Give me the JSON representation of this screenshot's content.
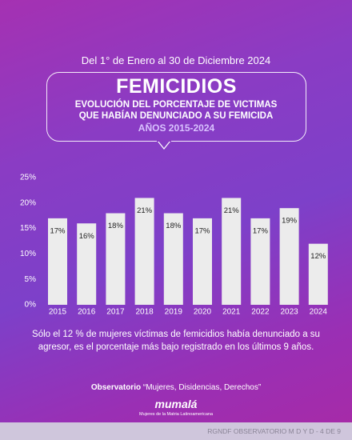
{
  "header": {
    "date_range": "Del 1° de Enero al 30 de Diciembre 2024"
  },
  "chart_data": {
    "type": "bar",
    "title": "FEMICIDIOS",
    "subtitle": "EVOLUCIÓN DEL PORCENTAJE DE VICTIMAS QUE HABÍAN DENUNCIADO A SU FEMICIDA",
    "period": "AÑOS 2015-2024",
    "categories": [
      "2015",
      "2016",
      "2017",
      "2018",
      "2019",
      "2020",
      "2021",
      "2022",
      "2023",
      "2024"
    ],
    "values": [
      17,
      16,
      18,
      21,
      18,
      17,
      21,
      17,
      19,
      12
    ],
    "value_labels": [
      "17%",
      "16%",
      "18%",
      "21%",
      "18%",
      "17%",
      "21%",
      "17%",
      "19%",
      "12%"
    ],
    "color": "#ececec",
    "ylim": [
      0,
      25
    ],
    "yticks": [
      {
        "value": 0,
        "label": "0%"
      },
      {
        "value": 5,
        "label": "5%"
      },
      {
        "value": 10,
        "label": "10%"
      },
      {
        "value": 15,
        "label": "15%"
      },
      {
        "value": 20,
        "label": "20%"
      },
      {
        "value": 25,
        "label": "25%"
      }
    ],
    "annotation": "Sólo el 12 % de mujeres víctimas de femicidios había denunciado a su agresor, es el porcentaje más bajo registrado en los últimos 9 años."
  },
  "footer": {
    "observatory_label": "Observatorio",
    "observatory_name": "“Mujeres, Disidencias, Derechos”",
    "logo": "mumalá",
    "logo_tagline": "Mujeres de la Matria Latinoamericana",
    "page_ref": "RGNDF OBSERVATORIO M D Y D - 4 DE 9"
  }
}
